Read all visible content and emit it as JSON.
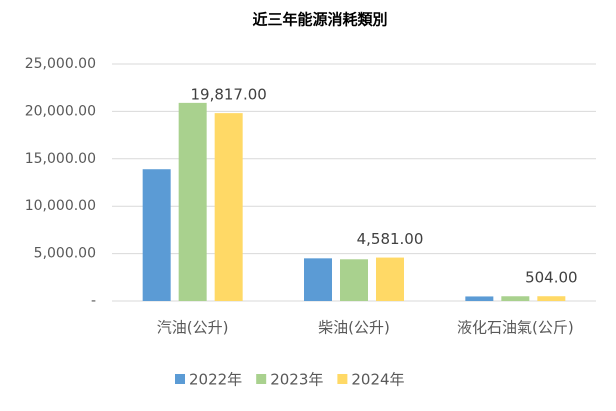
{
  "chart_data": {
    "type": "bar",
    "title": "近三年能源消耗類別",
    "categories": [
      "汽油(公升)",
      "柴油(公升)",
      "液化石油氣(公斤)"
    ],
    "series": [
      {
        "name": "2022年",
        "color": "#5b9bd5",
        "values": [
          13900,
          4500,
          480
        ]
      },
      {
        "name": "2023年",
        "color": "#a9d18e",
        "values": [
          20900,
          4400,
          500
        ]
      },
      {
        "name": "2024年",
        "color": "#ffd966",
        "values": [
          19817,
          4581,
          504
        ],
        "value_labels": [
          "19,817.00",
          "4,581.00",
          "504.00"
        ]
      }
    ],
    "ylim": [
      0,
      25000
    ],
    "yticks": [
      {
        "value": 0,
        "label": "-"
      },
      {
        "value": 5000,
        "label": "5,000.00"
      },
      {
        "value": 10000,
        "label": "10,000.00"
      },
      {
        "value": 15000,
        "label": "15,000.00"
      },
      {
        "value": 20000,
        "label": "20,000.00"
      },
      {
        "value": 25000,
        "label": "25,000.00"
      }
    ],
    "grid": true,
    "legend": "bottom"
  }
}
